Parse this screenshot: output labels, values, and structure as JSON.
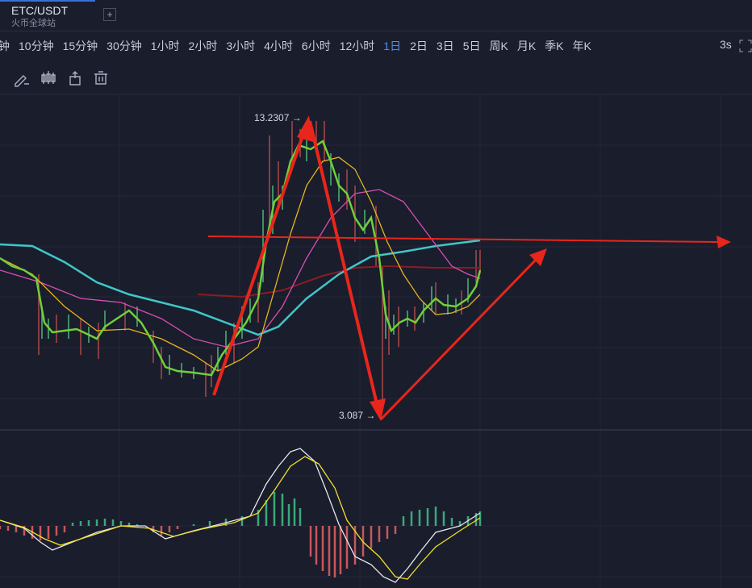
{
  "header": {
    "symbol": "ETC/USDT",
    "exchange": "火币全球站",
    "add_button": "+"
  },
  "toolbar": {
    "intervals": [
      {
        "label": "钟"
      },
      {
        "label": "10分钟"
      },
      {
        "label": "15分钟"
      },
      {
        "label": "30分钟"
      },
      {
        "label": "1小时"
      },
      {
        "label": "2小时"
      },
      {
        "label": "3小时"
      },
      {
        "label": "4小时"
      },
      {
        "label": "6小时"
      },
      {
        "label": "12小时"
      },
      {
        "label": "1日",
        "active": true
      },
      {
        "label": "2日"
      },
      {
        "label": "3日"
      },
      {
        "label": "5日"
      },
      {
        "label": "周K"
      },
      {
        "label": "月K"
      },
      {
        "label": "季K"
      },
      {
        "label": "年K"
      }
    ],
    "refresh": "3s"
  },
  "chart": {
    "high_label": "13.2307 →",
    "low_label": "3.087 →"
  }
}
